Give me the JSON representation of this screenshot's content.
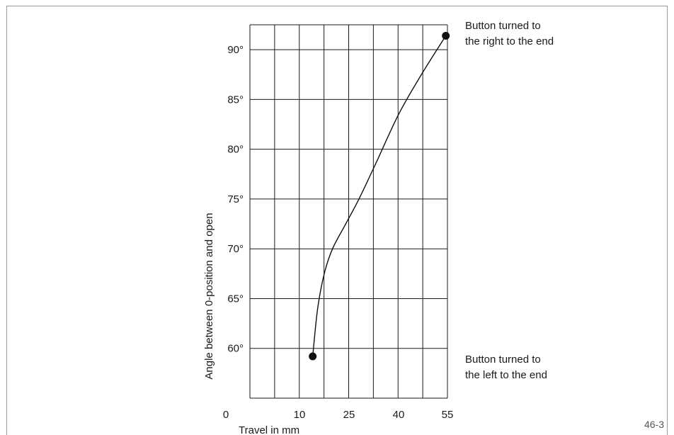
{
  "chart_data": {
    "type": "line",
    "xlabel": "Travel in mm",
    "ylabel": "Angle between 0-position and open",
    "x_ticks": [
      "0",
      "10",
      "25",
      "40",
      "55"
    ],
    "y_ticks": [
      "60°",
      "65°",
      "70°",
      "75°",
      "80°",
      "85°",
      "90°"
    ],
    "points": [
      {
        "x": 14,
        "y": 59.2
      },
      {
        "x": 54.5,
        "y": 91.4
      }
    ],
    "curve": [
      {
        "x": 14,
        "y": 59.2
      },
      {
        "x": 15.5,
        "y": 64
      },
      {
        "x": 17.5,
        "y": 67.5
      },
      {
        "x": 20,
        "y": 70
      },
      {
        "x": 24,
        "y": 72.5
      },
      {
        "x": 28,
        "y": 75
      },
      {
        "x": 33,
        "y": 78.5
      },
      {
        "x": 40,
        "y": 83.5
      },
      {
        "x": 47,
        "y": 87.5
      },
      {
        "x": 54.5,
        "y": 91.4
      }
    ],
    "annotations": [
      {
        "lines": [
          "Button turned to",
          "the right to the end"
        ],
        "anchor": "top-right"
      },
      {
        "lines": [
          "Button turned to",
          "the left to the end"
        ],
        "anchor": "bottom-right"
      }
    ],
    "grid": true,
    "grid_columns": 8,
    "grid_rows": 8,
    "y_range": [
      55,
      92.5
    ],
    "figure_id": "46-3"
  }
}
